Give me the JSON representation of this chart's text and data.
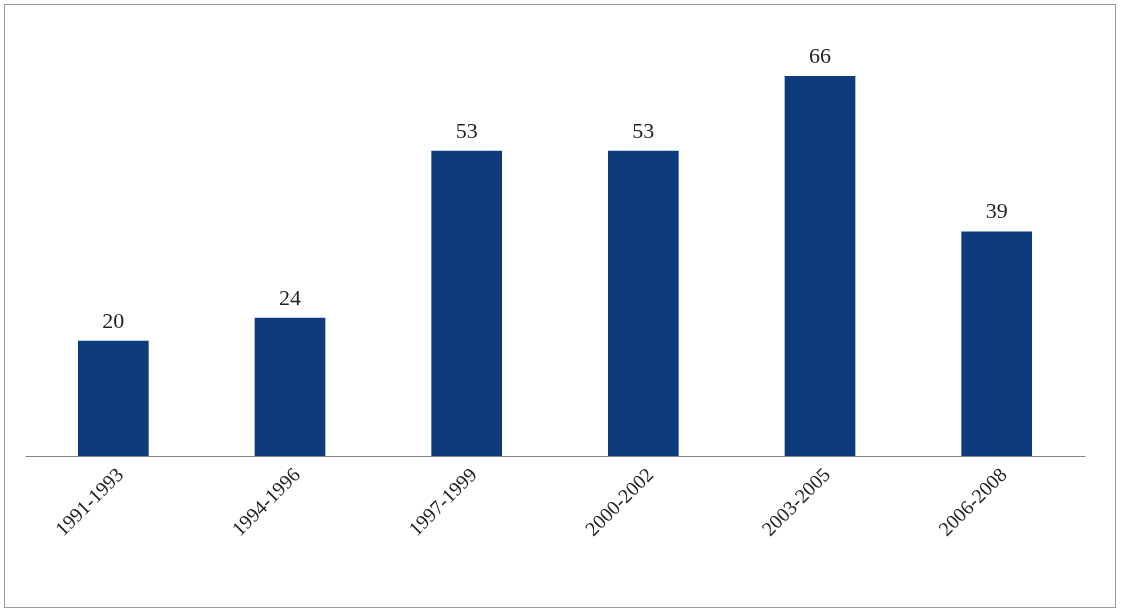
{
  "chart_data": {
    "type": "bar",
    "categories": [
      "1991-1993",
      "1994-1996",
      "1997-1999",
      "2000-2002",
      "2003-2005",
      "2006-2008"
    ],
    "values": [
      20,
      24,
      53,
      53,
      66,
      39
    ],
    "color": "#0d3b7c",
    "data_labels": true
  }
}
